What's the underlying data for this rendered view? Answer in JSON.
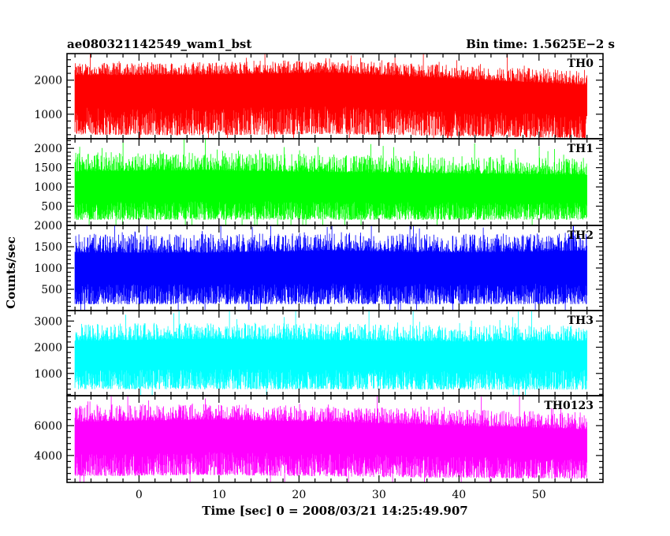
{
  "header": {
    "title": "ae080321142549_wam1_bst",
    "bin_time": "Bin time: 1.5625E−2 s"
  },
  "chart_data": {
    "type": "line",
    "xlabel": "Time [sec] 0 = 2008/03/21 14:25:49.907",
    "ylabel": "Counts/sec",
    "xlim": [
      -9,
      58
    ],
    "x_range_data": [
      -8,
      56
    ],
    "xticks": [
      0,
      10,
      20,
      30,
      40,
      50
    ],
    "panels": [
      {
        "name": "TH0",
        "color": "#ff0000",
        "ylim": [
          280,
          2780
        ],
        "yticks": [
          1000,
          2000
        ],
        "envelope": {
          "base": [
            1850,
            1850,
            1920,
            1700,
            1500
          ],
          "upper": [
            2500,
            2550,
            2600,
            2450,
            2300
          ],
          "lower": [
            400,
            380,
            420,
            350,
            300
          ]
        }
      },
      {
        "name": "TH1",
        "color": "#00ff00",
        "ylim": [
          0,
          2250
        ],
        "yticks": [
          500,
          1000,
          1500,
          2000
        ],
        "envelope": {
          "base": [
            1000,
            1050,
            1000,
            980,
            950
          ],
          "upper": [
            1900,
            1900,
            1850,
            1800,
            1750
          ],
          "lower": [
            150,
            150,
            150,
            150,
            150
          ]
        }
      },
      {
        "name": "TH2",
        "color": "#0000ff",
        "ylim": [
          0,
          2000
        ],
        "yticks": [
          500,
          1000,
          1500,
          2000
        ],
        "envelope": {
          "base": [
            1000,
            1000,
            1050,
            1000,
            1050
          ],
          "upper": [
            1800,
            1800,
            1850,
            1800,
            1850
          ],
          "lower": [
            150,
            150,
            150,
            150,
            150
          ]
        }
      },
      {
        "name": "TH3",
        "color": "#00ffff",
        "ylim": [
          150,
          3400
        ],
        "yticks": [
          1000,
          2000,
          3000
        ],
        "envelope": {
          "base": [
            1700,
            1800,
            1750,
            1700,
            1750
          ],
          "upper": [
            2900,
            2950,
            2900,
            2850,
            2850
          ],
          "lower": [
            400,
            400,
            400,
            380,
            380
          ]
        }
      },
      {
        "name": "TH0123",
        "color": "#ff00ff",
        "ylim": [
          2200,
          8000
        ],
        "yticks": [
          4000,
          6000
        ],
        "envelope": {
          "base": [
            5300,
            5500,
            5400,
            5100,
            4800
          ],
          "upper": [
            7400,
            7500,
            7300,
            7100,
            6900
          ],
          "lower": [
            2600,
            2700,
            2600,
            2500,
            2450
          ]
        }
      }
    ]
  }
}
